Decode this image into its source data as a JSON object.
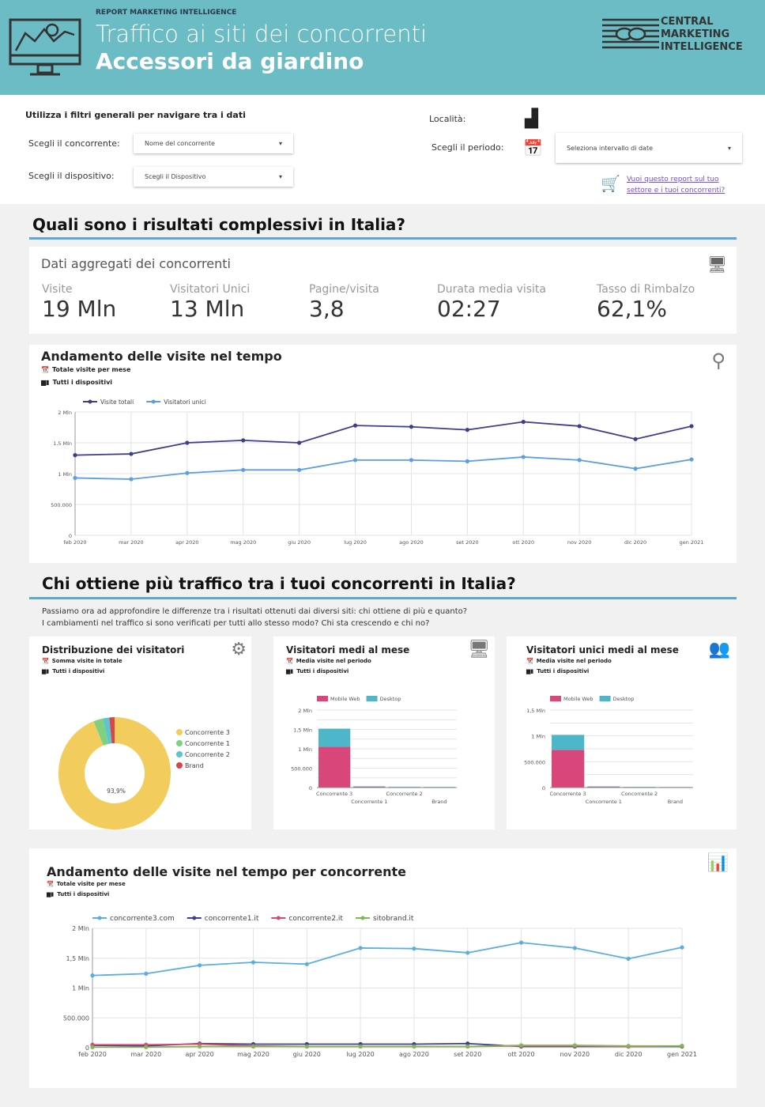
{
  "header": {
    "kicker": "REPORT MARKETING INTELLIGENCE",
    "title": "Traffico ai siti dei concorrenti",
    "subtitle": "Accessori da giardino",
    "logo_text": [
      "CENTRAL",
      "MARKETING",
      "INTELLIGENCE"
    ],
    "bg": "#6bbcc4"
  },
  "filters": {
    "heading": "Utilizza i filtri generali per navigare tra i dati",
    "competitor_label": "Scegli il concorrente:",
    "competitor_value": "Nome del concorrente",
    "device_label": "Scegli il dispositivo:",
    "device_value": "Scegli il Dispositivo",
    "location_label": "Località:",
    "period_label": "Scegli il periodo:",
    "period_value": "Seleziona intervallo di date",
    "cta_link": "Vuoi questo report sul tuo settore e i tuoi concorrenti?"
  },
  "section1": {
    "title": "Quali sono i risultati complessivi in Italia?"
  },
  "kpi": {
    "title": "Dati aggregati dei concorrenti",
    "items": [
      {
        "label": "Visite",
        "value": "19 Mln"
      },
      {
        "label": "Visitatori Unici",
        "value": "13 Mln"
      },
      {
        "label": "Pagine/visita",
        "value": "3,8"
      },
      {
        "label": "Durata media visita",
        "value": "02:27"
      },
      {
        "label": "Tasso di Rimbalzo",
        "value": "62,1%"
      }
    ]
  },
  "trend_card": {
    "title": "Andamento delle visite nel tempo",
    "sub1": "Totale visite per mese",
    "sub2": "Tutti i dispositivi"
  },
  "section2": {
    "title": "Chi ottiene più traffico tra i tuoi concorrenti in Italia?",
    "intro1": "Passiamo ora ad approfondire le differenze tra i risultati ottenuti dai diversi siti: chi ottiene di più e quanto?",
    "intro2": "I cambiamenti nel traffico si sono verificati per tutti allo stesso modo? Chi sta crescendo e chi no?"
  },
  "dist_card": {
    "title": "Distribuzione dei visitatori",
    "sub1": "Somma visite in totale",
    "sub2": "Tutti i dispositivi"
  },
  "avg_card": {
    "title": "Visitatori medi al mese",
    "sub1": "Media visite nel periodo",
    "sub2": "Tutti i dispositivi"
  },
  "uniq_card": {
    "title": "Visitatori unici medi al mese",
    "sub1": "Media visite nel periodo",
    "sub2": "Tutti i dispositivi"
  },
  "comp_card": {
    "title": "Andamento delle visite nel tempo per concorrente",
    "sub1": "Totale visite per mese",
    "sub2": "Tutti i dispositivi"
  },
  "chart_data": [
    {
      "type": "line",
      "categories": [
        "feb 2020",
        "mar 2020",
        "apr 2020",
        "mag 2020",
        "giu 2020",
        "lug 2020",
        "ago 2020",
        "set 2020",
        "ott 2020",
        "nov 2020",
        "dic 2020",
        "gen 2021"
      ],
      "ylim": [
        0,
        2000000
      ],
      "yticks": [
        "0",
        "500.000",
        "1 Mln",
        "1,5 Mln",
        "2 Mln"
      ],
      "legend": "top-left",
      "grid": true,
      "series": [
        {
          "name": "Visite totali",
          "color": "#3f3d8f",
          "values": [
            1300000,
            1320000,
            1500000,
            1540000,
            1500000,
            1780000,
            1760000,
            1710000,
            1840000,
            1770000,
            1560000,
            1770000
          ]
        },
        {
          "name": "Visitatori unici",
          "color": "#5b9fe0",
          "values": [
            930000,
            910000,
            1010000,
            1060000,
            1060000,
            1220000,
            1220000,
            1200000,
            1270000,
            1220000,
            1080000,
            1230000
          ]
        }
      ]
    },
    {
      "type": "pie",
      "donut": true,
      "categories": [
        "Concorrente 3",
        "Concorrente 1",
        "Concorrente 2",
        "Brand"
      ],
      "values": [
        93.9,
        2.8,
        1.8,
        1.5
      ],
      "colors": [
        "#f2cc5c",
        "#7fd17f",
        "#5ec4cf",
        "#d9444f"
      ],
      "labels": [
        "93,9%"
      ],
      "legend": "right"
    },
    {
      "type": "bar",
      "stacked": true,
      "categories": [
        "Concorrente 3",
        "Concorrente 1",
        "Concorrente 2",
        "Brand"
      ],
      "ylim": [
        0,
        2000000
      ],
      "yticks": [
        "0",
        "500.000",
        "1 Mln",
        "1,5 Mln",
        "2 Mln"
      ],
      "legend": "top",
      "series": [
        {
          "name": "Mobile Web",
          "color": "#d9467a",
          "values": [
            1050000,
            20000,
            15000,
            12000
          ]
        },
        {
          "name": "Desktop",
          "color": "#4db6c9",
          "values": [
            470000,
            12000,
            8000,
            6000
          ]
        }
      ]
    },
    {
      "type": "bar",
      "stacked": true,
      "categories": [
        "Concorrente 3",
        "Concorrente 1",
        "Concorrente 2",
        "Brand"
      ],
      "ylim": [
        0,
        1500000
      ],
      "yticks": [
        "0",
        "500.000",
        "1 Mln",
        "1,5 Mln"
      ],
      "legend": "top",
      "series": [
        {
          "name": "Mobile Web",
          "color": "#d9467a",
          "values": [
            730000,
            15000,
            10000,
            8000
          ]
        },
        {
          "name": "Desktop",
          "color": "#4db6c9",
          "values": [
            290000,
            8000,
            5000,
            4000
          ]
        }
      ]
    },
    {
      "type": "line",
      "categories": [
        "feb 2020",
        "mar 2020",
        "apr 2020",
        "mag 2020",
        "giu 2020",
        "lug 2020",
        "ago 2020",
        "set 2020",
        "ott 2020",
        "nov 2020",
        "dic 2020",
        "gen 2021"
      ],
      "ylim": [
        0,
        2000000
      ],
      "yticks": [
        "0",
        "500.000",
        "1 Mln",
        "1,5 Mln",
        "2 Mln"
      ],
      "legend": "top-left",
      "grid": true,
      "series": [
        {
          "name": "concorrente3.com",
          "color": "#5aaee0",
          "values": [
            1210000,
            1240000,
            1380000,
            1430000,
            1400000,
            1670000,
            1660000,
            1590000,
            1760000,
            1670000,
            1490000,
            1680000
          ]
        },
        {
          "name": "concorrente1.it",
          "color": "#3f3d8f",
          "values": [
            40000,
            30000,
            70000,
            60000,
            60000,
            60000,
            60000,
            70000,
            20000,
            20000,
            20000,
            20000
          ]
        },
        {
          "name": "concorrente2.it",
          "color": "#d9467a",
          "values": [
            50000,
            50000,
            60000,
            30000,
            20000,
            20000,
            20000,
            20000,
            30000,
            30000,
            20000,
            30000
          ]
        },
        {
          "name": "sitobrand.it",
          "color": "#7fb850",
          "values": [
            10000,
            10000,
            20000,
            20000,
            20000,
            20000,
            20000,
            20000,
            40000,
            40000,
            30000,
            30000
          ]
        }
      ]
    }
  ]
}
